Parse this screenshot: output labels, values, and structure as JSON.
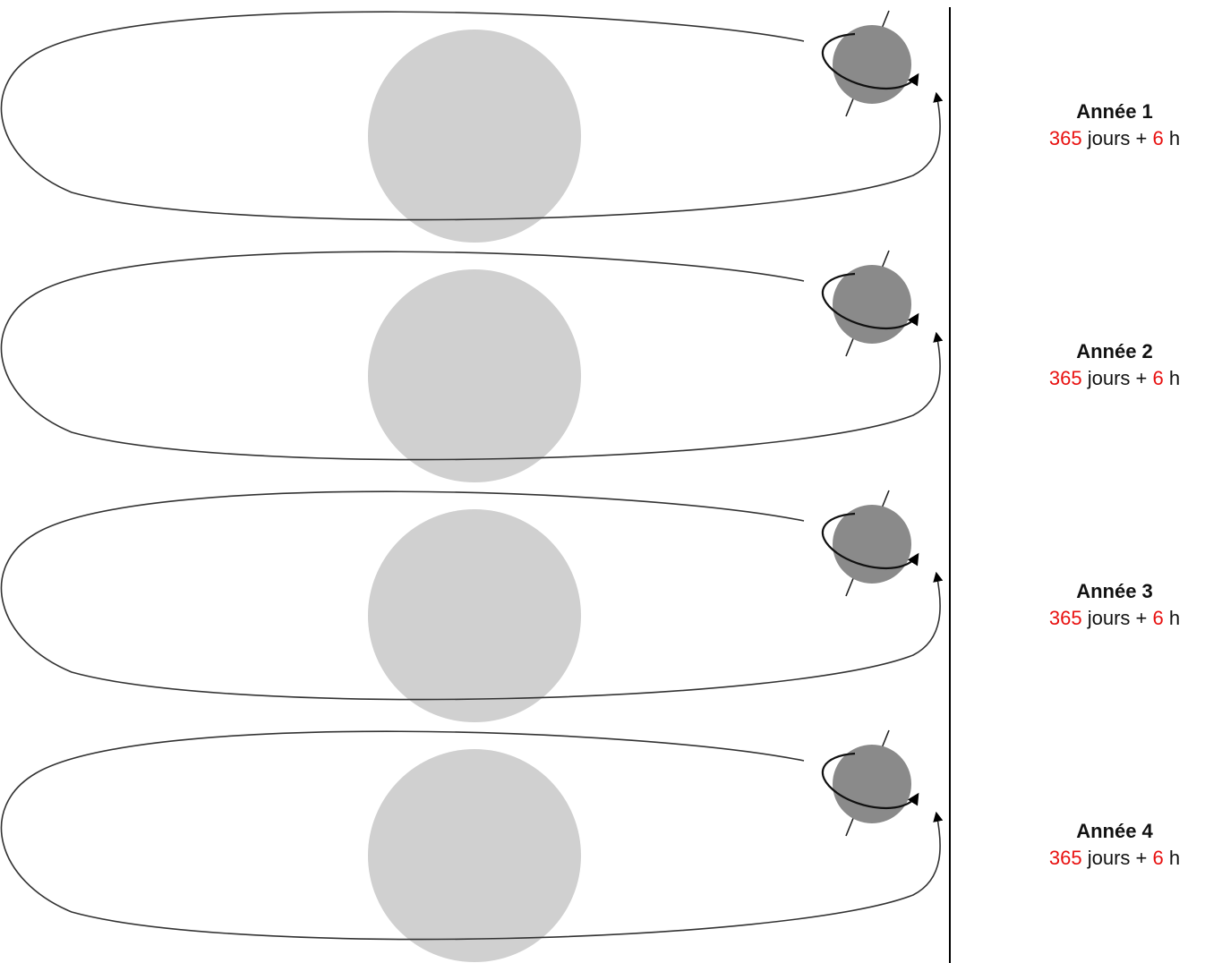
{
  "colors": {
    "sun": "#d0d0d0",
    "earth": "#8a8a8a",
    "orbit": "#333333",
    "highlight_number": "#e8100f",
    "divider": "#000000"
  },
  "years": [
    {
      "title": "Année 1",
      "days": "365",
      "days_unit": " jours + ",
      "hours": "6",
      "hours_unit": " h"
    },
    {
      "title": "Année 2",
      "days": "365",
      "days_unit": " jours + ",
      "hours": "6",
      "hours_unit": " h"
    },
    {
      "title": "Année 3",
      "days": "365",
      "days_unit": " jours + ",
      "hours": "6",
      "hours_unit": " h"
    },
    {
      "title": "Année 4",
      "days": "365",
      "days_unit": " jours + ",
      "hours": "6",
      "hours_unit": " h"
    }
  ]
}
